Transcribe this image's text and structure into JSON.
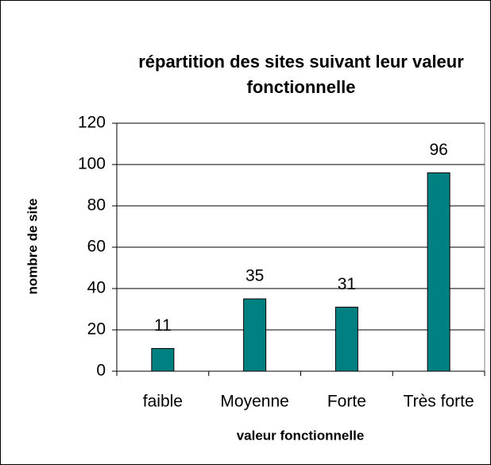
{
  "chart_data": {
    "type": "bar",
    "title": "répartition des sites suivant leur valeur fonctionnelle",
    "xlabel": "valeur fonctionnelle",
    "ylabel": "nombre de site",
    "categories": [
      "faible",
      "Moyenne",
      "Forte",
      "Très forte"
    ],
    "values": [
      11,
      35,
      31,
      96
    ],
    "color": "#008080",
    "ylim": [
      0,
      120
    ],
    "yticks": [
      0,
      20,
      40,
      60,
      80,
      100,
      120
    ],
    "grid": true
  }
}
